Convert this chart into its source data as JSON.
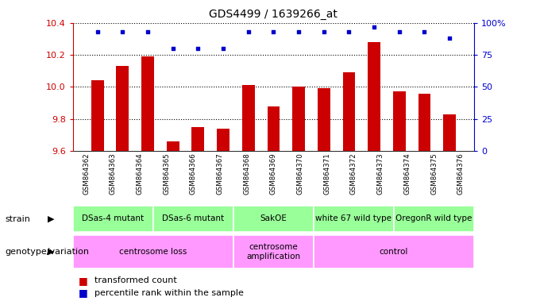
{
  "title": "GDS4499 / 1639266_at",
  "samples": [
    "GSM864362",
    "GSM864363",
    "GSM864364",
    "GSM864365",
    "GSM864366",
    "GSM864367",
    "GSM864368",
    "GSM864369",
    "GSM864370",
    "GSM864371",
    "GSM864372",
    "GSM864373",
    "GSM864374",
    "GSM864375",
    "GSM864376"
  ],
  "bar_values": [
    10.04,
    10.13,
    10.19,
    9.66,
    9.75,
    9.74,
    10.01,
    9.88,
    10.0,
    9.99,
    10.09,
    10.28,
    9.97,
    9.96,
    9.83
  ],
  "percentile_values": [
    93,
    93,
    93,
    80,
    80,
    80,
    93,
    93,
    93,
    93,
    93,
    97,
    93,
    93,
    88
  ],
  "ylim_left": [
    9.6,
    10.4
  ],
  "ylim_right": [
    0,
    100
  ],
  "yticks_left": [
    9.6,
    9.8,
    10.0,
    10.2,
    10.4
  ],
  "yticks_right": [
    0,
    25,
    50,
    75,
    100
  ],
  "bar_color": "#cc0000",
  "dot_color": "#0000cc",
  "strain_groups": [
    {
      "label": "DSas-4 mutant",
      "start": 0,
      "end": 3
    },
    {
      "label": "DSas-6 mutant",
      "start": 3,
      "end": 6
    },
    {
      "label": "SakOE",
      "start": 6,
      "end": 9
    },
    {
      "label": "white 67 wild type",
      "start": 9,
      "end": 12
    },
    {
      "label": "OregonR wild type",
      "start": 12,
      "end": 15
    }
  ],
  "genotype_groups": [
    {
      "label": "centrosome loss",
      "start": 0,
      "end": 6
    },
    {
      "label": "centrosome\namplification",
      "start": 6,
      "end": 9
    },
    {
      "label": "control",
      "start": 9,
      "end": 15
    }
  ],
  "strain_color": "#99ff99",
  "genotype_color": "#ff99ff",
  "xtick_bg_color": "#c8c8c8",
  "strain_label": "strain",
  "genotype_label": "genotype/variation",
  "legend_bar": "transformed count",
  "legend_dot": "percentile rank within the sample",
  "tick_color_left": "#cc0000",
  "tick_color_right": "#0000cc"
}
